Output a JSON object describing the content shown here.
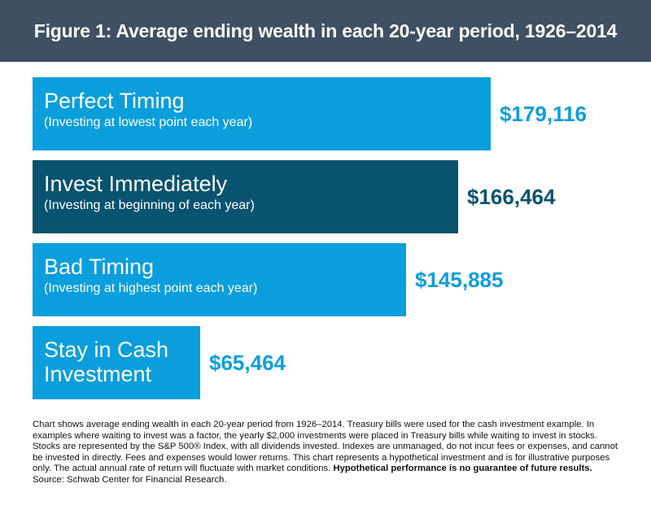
{
  "title": "Figure 1: Average ending wealth in each 20-year period, 1926–2014",
  "colors": {
    "header_bg": "#3e5061",
    "bright_bar": "#0a9edc",
    "dark_bar": "#08536f",
    "bright_value": "#0a9edc",
    "dark_value": "#08536f"
  },
  "chart_data": {
    "type": "bar",
    "orientation": "horizontal",
    "categories": [
      "Perfect Timing (Investing at lowest point each year)",
      "Invest Immediately (Investing at beginning of each year)",
      "Bad Timing (Investing at highest point each year)",
      "Stay in Cash Investment"
    ],
    "values": [
      179116,
      166464,
      145885,
      65464
    ],
    "bars": [
      {
        "name": "Perfect Timing",
        "description": "(Investing at lowest point each year)",
        "value": 179116,
        "value_label": "$179,116",
        "tone": "bright"
      },
      {
        "name": "Invest Immediately",
        "description": "(Investing at beginning of each year)",
        "value": 166464,
        "value_label": "$166,464",
        "tone": "dark"
      },
      {
        "name": "Bad Timing",
        "description": "(Investing at highest point each year)",
        "value": 145885,
        "value_label": "$145,885",
        "tone": "bright"
      },
      {
        "name": "Stay in Cash Investment",
        "description": "",
        "value": 65464,
        "value_label": "$65,464",
        "tone": "bright"
      }
    ],
    "xlim": [
      0,
      179116
    ],
    "grid": false,
    "legend": "none"
  },
  "footnote": {
    "text": "Chart shows average ending wealth in each 20-year period from 1926–2014. Treasury bills were used for the cash investment example. In examples where waiting to invest was a factor, the yearly $2,000 investments were placed in Treasury bills while waiting to invest in stocks. Stocks are represented by the S&P 500® Index, with all dividends invested. Indexes are unmanaged, do not incur fees or expenses, and cannot be invested in directly. Fees and expenses would lower returns. This chart represents a hypothetical investment and is for illustrative purposes only. The actual annual rate of return will fluctuate with market conditions.",
    "bold": "Hypothetical performance is no guarantee of future results.",
    "source": "Source: Schwab Center for Financial Research."
  }
}
